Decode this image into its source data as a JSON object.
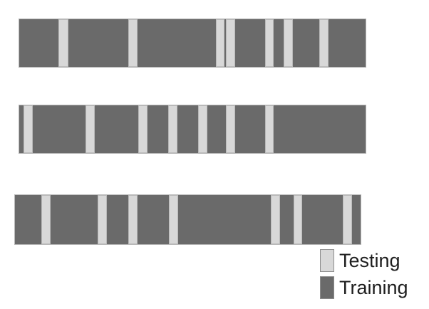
{
  "colors": {
    "training": "#6a6a6a",
    "testing": "#d8d8d8"
  },
  "legend": {
    "testing_label": "Testing",
    "training_label": "Training"
  }
}
